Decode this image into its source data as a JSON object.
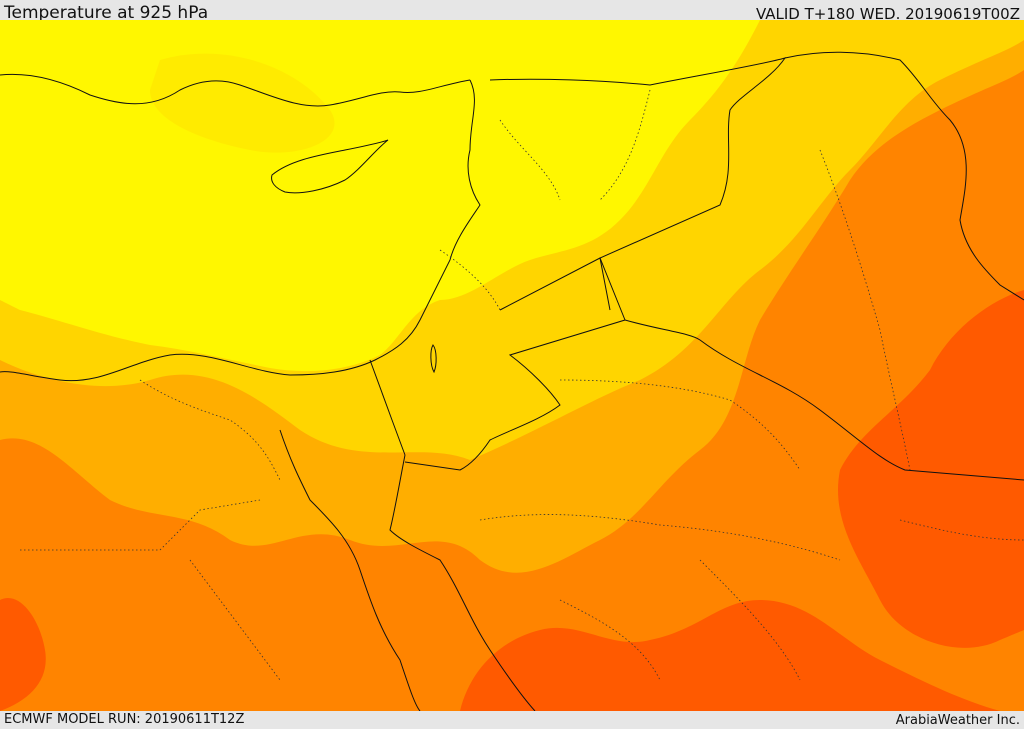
{
  "header": {
    "title": "Temperature at 925 hPa",
    "valid": "VALID T+180 WED. 20190619T00Z"
  },
  "footer": {
    "model_run": "ECMWF MODEL RUN: 20190611T12Z",
    "credit": "ArabiaWeather Inc."
  },
  "map": {
    "variable": "Temperature",
    "level": "925 hPa",
    "color_scale": [
      "#fff700",
      "#ffd500",
      "#ffae00",
      "#ff8400",
      "#ff5a00"
    ]
  }
}
